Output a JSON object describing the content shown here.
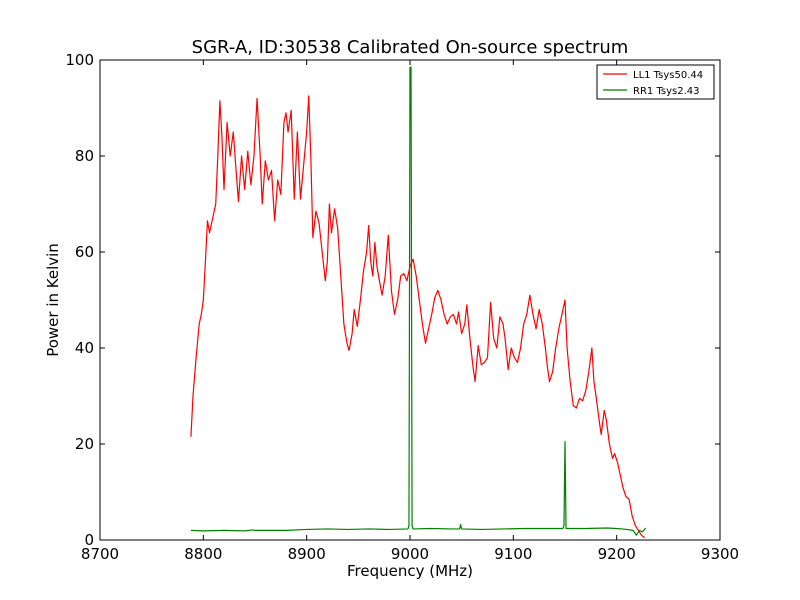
{
  "chart_data": {
    "type": "line",
    "title": "SGR-A, ID:30538 Calibrated On-source spectrum",
    "xlabel": "Frequency (MHz)",
    "ylabel": "Power in Kelvin",
    "xlim": [
      8700,
      9300
    ],
    "ylim": [
      0,
      100
    ],
    "xticks": [
      "8700",
      "8800",
      "8900",
      "9000",
      "9100",
      "9200",
      "9300"
    ],
    "yticks": [
      "0",
      "20",
      "40",
      "60",
      "80",
      "100"
    ],
    "grid": false,
    "legend_position": "top-right",
    "series": [
      {
        "name": "LL1 Tsys50.44",
        "color": "#ff0000",
        "points": [
          [
            8788,
            21.5
          ],
          [
            8790,
            30
          ],
          [
            8793,
            38
          ],
          [
            8796,
            45
          ],
          [
            8798,
            47
          ],
          [
            8800,
            50
          ],
          [
            8802,
            58
          ],
          [
            8804,
            66.5
          ],
          [
            8806,
            64
          ],
          [
            8808,
            66
          ],
          [
            8810,
            68
          ],
          [
            8812,
            70
          ],
          [
            8814,
            80
          ],
          [
            8816,
            91.5
          ],
          [
            8818,
            84
          ],
          [
            8820,
            73
          ],
          [
            8823,
            87
          ],
          [
            8826,
            80
          ],
          [
            8829,
            85
          ],
          [
            8832,
            76
          ],
          [
            8834,
            70.5
          ],
          [
            8837,
            80
          ],
          [
            8840,
            73
          ],
          [
            8843,
            81
          ],
          [
            8846,
            74
          ],
          [
            8849,
            80
          ],
          [
            8852,
            92
          ],
          [
            8855,
            80
          ],
          [
            8857,
            70
          ],
          [
            8860,
            79
          ],
          [
            8863,
            75
          ],
          [
            8866,
            77
          ],
          [
            8869,
            66.5
          ],
          [
            8872,
            75
          ],
          [
            8875,
            72
          ],
          [
            8878,
            87
          ],
          [
            8880,
            89
          ],
          [
            8882,
            85
          ],
          [
            8885,
            89.5
          ],
          [
            8888,
            71
          ],
          [
            8891,
            85
          ],
          [
            8894,
            71
          ],
          [
            8897,
            78
          ],
          [
            8900,
            85
          ],
          [
            8902,
            92.5
          ],
          [
            8904,
            80
          ],
          [
            8906,
            63
          ],
          [
            8909,
            68.5
          ],
          [
            8912,
            66
          ],
          [
            8915,
            60
          ],
          [
            8918,
            54
          ],
          [
            8920,
            58
          ],
          [
            8922,
            70
          ],
          [
            8924,
            64
          ],
          [
            8927,
            69
          ],
          [
            8930,
            65
          ],
          [
            8933,
            55
          ],
          [
            8936,
            45
          ],
          [
            8939,
            41
          ],
          [
            8941,
            39.5
          ],
          [
            8944,
            43
          ],
          [
            8946,
            48
          ],
          [
            8949,
            44.5
          ],
          [
            8952,
            50
          ],
          [
            8955,
            56
          ],
          [
            8958,
            60
          ],
          [
            8960,
            65.5
          ],
          [
            8962,
            58
          ],
          [
            8964,
            55
          ],
          [
            8966,
            62
          ],
          [
            8968,
            57
          ],
          [
            8970,
            54.5
          ],
          [
            8973,
            51
          ],
          [
            8976,
            55
          ],
          [
            8979,
            63.5
          ],
          [
            8982,
            52
          ],
          [
            8985,
            47
          ],
          [
            8988,
            50
          ],
          [
            8991,
            55
          ],
          [
            8994,
            55.5
          ],
          [
            8997,
            54
          ],
          [
            9000,
            57
          ],
          [
            9003,
            58.5
          ],
          [
            9006,
            55
          ],
          [
            9009,
            50
          ],
          [
            9012,
            45
          ],
          [
            9015,
            41
          ],
          [
            9018,
            44
          ],
          [
            9021,
            47
          ],
          [
            9024,
            50.5
          ],
          [
            9027,
            52
          ],
          [
            9030,
            50
          ],
          [
            9033,
            47
          ],
          [
            9036,
            45
          ],
          [
            9039,
            46.5
          ],
          [
            9042,
            47
          ],
          [
            9045,
            45
          ],
          [
            9047,
            47.5
          ],
          [
            9050,
            43
          ],
          [
            9053,
            45
          ],
          [
            9055,
            49
          ],
          [
            9058,
            42
          ],
          [
            9061,
            36
          ],
          [
            9063,
            33
          ],
          [
            9066,
            40.5
          ],
          [
            9069,
            36.5
          ],
          [
            9072,
            37
          ],
          [
            9075,
            38
          ],
          [
            9078,
            49.5
          ],
          [
            9081,
            42
          ],
          [
            9084,
            40
          ],
          [
            9087,
            46.5
          ],
          [
            9090,
            45
          ],
          [
            9092,
            42
          ],
          [
            9095,
            35.5
          ],
          [
            9098,
            40
          ],
          [
            9101,
            38
          ],
          [
            9104,
            37
          ],
          [
            9107,
            40
          ],
          [
            9110,
            45
          ],
          [
            9113,
            47
          ],
          [
            9116,
            51
          ],
          [
            9119,
            47
          ],
          [
            9122,
            44
          ],
          [
            9125,
            48
          ],
          [
            9128,
            45
          ],
          [
            9131,
            40
          ],
          [
            9133,
            36
          ],
          [
            9135,
            33
          ],
          [
            9138,
            35
          ],
          [
            9141,
            40
          ],
          [
            9144,
            44
          ],
          [
            9147,
            47
          ],
          [
            9150,
            50
          ],
          [
            9152,
            40
          ],
          [
            9155,
            33
          ],
          [
            9158,
            28
          ],
          [
            9161,
            27.5
          ],
          [
            9164,
            29.5
          ],
          [
            9167,
            29
          ],
          [
            9170,
            31
          ],
          [
            9173,
            35
          ],
          [
            9176,
            40
          ],
          [
            9178,
            33
          ],
          [
            9180,
            30
          ],
          [
            9183,
            25
          ],
          [
            9185,
            22
          ],
          [
            9188,
            27
          ],
          [
            9190,
            25
          ],
          [
            9193,
            20
          ],
          [
            9196,
            17
          ],
          [
            9198,
            18
          ],
          [
            9201,
            16
          ],
          [
            9203,
            14
          ],
          [
            9206,
            11
          ],
          [
            9209,
            9
          ],
          [
            9212,
            8.5
          ],
          [
            9215,
            5
          ],
          [
            9218,
            3
          ],
          [
            9221,
            2
          ],
          [
            9224,
            1
          ],
          [
            9227,
            0.5
          ]
        ]
      },
      {
        "name": "RR1 Tsys2.43",
        "color": "#008000",
        "points": [
          [
            8788,
            2.0
          ],
          [
            8800,
            1.9
          ],
          [
            8820,
            2.0
          ],
          [
            8840,
            1.9
          ],
          [
            8848,
            2.1
          ],
          [
            8850,
            2.0
          ],
          [
            8860,
            2.0
          ],
          [
            8880,
            2.0
          ],
          [
            8900,
            2.2
          ],
          [
            8920,
            2.3
          ],
          [
            8940,
            2.2
          ],
          [
            8960,
            2.3
          ],
          [
            8980,
            2.2
          ],
          [
            8998,
            2.3
          ],
          [
            8999,
            3.0
          ],
          [
            9000,
            98.5
          ],
          [
            9001,
            98.5
          ],
          [
            9002,
            3.0
          ],
          [
            9003,
            2.3
          ],
          [
            9020,
            2.4
          ],
          [
            9040,
            2.3
          ],
          [
            9048,
            2.3
          ],
          [
            9049,
            3.2
          ],
          [
            9050,
            2.3
          ],
          [
            9070,
            2.2
          ],
          [
            9090,
            2.3
          ],
          [
            9110,
            2.4
          ],
          [
            9130,
            2.4
          ],
          [
            9148,
            2.4
          ],
          [
            9149,
            3.0
          ],
          [
            9150,
            20.5
          ],
          [
            9151,
            2.4
          ],
          [
            9170,
            2.4
          ],
          [
            9190,
            2.5
          ],
          [
            9200,
            2.4
          ],
          [
            9210,
            2.2
          ],
          [
            9216,
            2.0
          ],
          [
            9219,
            1.0
          ],
          [
            9222,
            2.0
          ],
          [
            9225,
            1.7
          ],
          [
            9228,
            2.5
          ]
        ]
      }
    ]
  }
}
